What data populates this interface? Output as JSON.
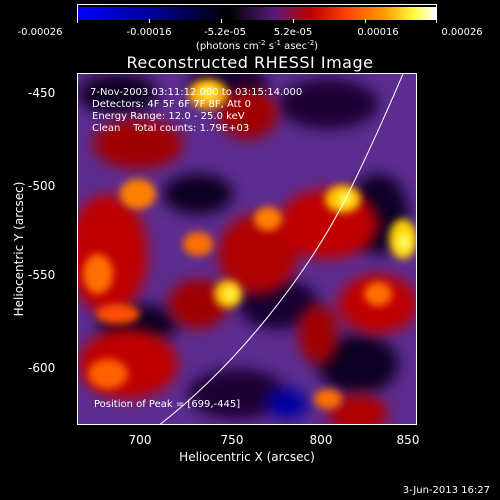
{
  "colorbar": {
    "ticks": [
      "-0.00026",
      "-0.00016",
      "-5.2e-05",
      "5.2e-05",
      "0.00016",
      "0.00026"
    ],
    "units_main": "(photons cm",
    "units_exp1": "-2",
    "units_mid": " s",
    "units_exp2": "-1",
    "units_tail": " asec",
    "units_exp3": "-2",
    "units_close": ")",
    "colors": [
      "#0000ff",
      "#000080",
      "#000000",
      "#500080",
      "#ff0000",
      "#ff8000",
      "#ffff00",
      "#ffffff"
    ]
  },
  "image": {
    "title": "Reconstructed RHESSI Image",
    "info_line1": "7-Nov-2003 03:11:12.000 to 03:15:14.000",
    "info_line2": "Detectors: 4F 5F 6F 7F 8F, Att 0",
    "info_line3": "Energy Range: 12.0 - 25.0 keV",
    "info_line4": "Clean    Total counts: 1.79E+03",
    "peak_text": "Position of Peak = [699,-445]",
    "timestamp": "3-Jun-2013 16:27"
  },
  "axes": {
    "xlabel": "Heliocentric X (arcsec)",
    "ylabel": "Heliocentric Y (arcsec)",
    "xlim": [
      660,
      855
    ],
    "ylim": [
      -632,
      -434
    ],
    "x_ticks": [
      "700",
      "750",
      "800",
      "850"
    ],
    "y_ticks": [
      "-450",
      "-500",
      "-550",
      "-600"
    ]
  }
}
